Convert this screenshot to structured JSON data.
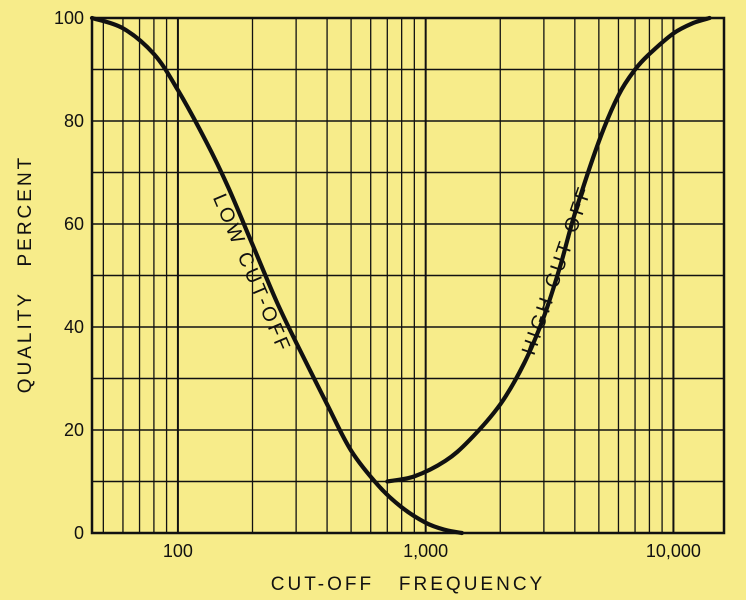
{
  "colors": {
    "background": "#f7ec8a",
    "ink": "#111111"
  },
  "chart_data": {
    "type": "line",
    "xscale": "log",
    "xlim": [
      45,
      16000
    ],
    "ylim": [
      0,
      100
    ],
    "grid": true,
    "xlabel": "CUT-OFF   FREQUENCY",
    "ylabel": "QUALITY   PERCENT",
    "xticks": [
      {
        "value": 100,
        "label": "100"
      },
      {
        "value": 1000,
        "label": "1,000"
      },
      {
        "value": 10000,
        "label": "10,000"
      }
    ],
    "yticks": [
      {
        "value": 0,
        "label": "0"
      },
      {
        "value": 20,
        "label": "20"
      },
      {
        "value": 40,
        "label": "40"
      },
      {
        "value": 60,
        "label": "60"
      },
      {
        "value": 80,
        "label": "80"
      },
      {
        "value": 100,
        "label": "100"
      }
    ],
    "series": [
      {
        "name": "LOW CUT-OFF",
        "points": [
          [
            45,
            100
          ],
          [
            60,
            98
          ],
          [
            80,
            93
          ],
          [
            100,
            86
          ],
          [
            130,
            76
          ],
          [
            160,
            67
          ],
          [
            200,
            56
          ],
          [
            250,
            45
          ],
          [
            300,
            37
          ],
          [
            400,
            25
          ],
          [
            500,
            16
          ],
          [
            650,
            9
          ],
          [
            800,
            5
          ],
          [
            1000,
            2
          ],
          [
            1200,
            0.6
          ],
          [
            1400,
            0
          ]
        ]
      },
      {
        "name": "HIGH CUT-OFF",
        "points": [
          [
            700,
            10
          ],
          [
            900,
            11
          ],
          [
            1200,
            14
          ],
          [
            1500,
            18
          ],
          [
            2000,
            25
          ],
          [
            2500,
            33
          ],
          [
            3000,
            42
          ],
          [
            3500,
            52
          ],
          [
            4000,
            62
          ],
          [
            5000,
            76
          ],
          [
            6000,
            85
          ],
          [
            7000,
            90
          ],
          [
            8000,
            93
          ],
          [
            10000,
            97
          ],
          [
            12000,
            99
          ],
          [
            14000,
            100
          ]
        ]
      }
    ]
  }
}
